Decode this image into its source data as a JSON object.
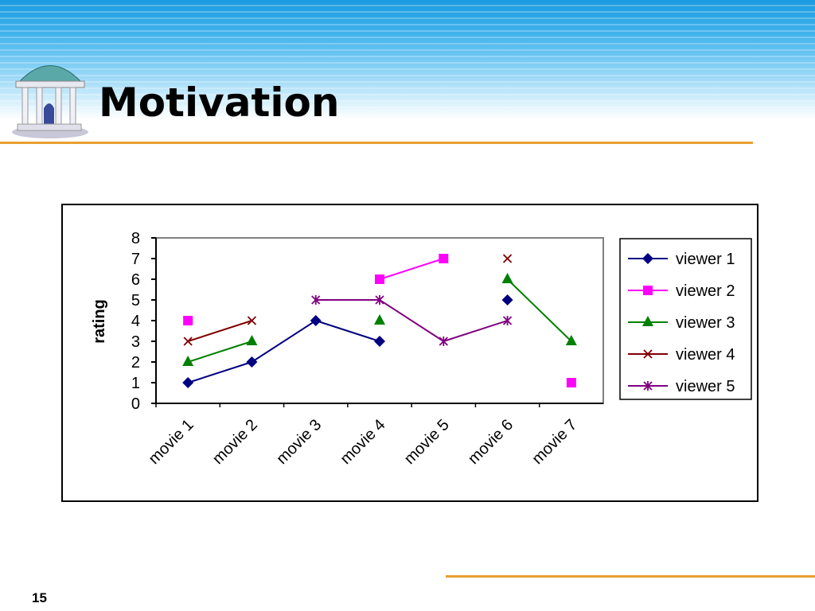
{
  "slide": {
    "title": "Motivation",
    "page_number": "15"
  },
  "colors": {
    "accent_rule": "#e8a030"
  },
  "chart_data": {
    "type": "line",
    "title": "",
    "xlabel": "",
    "ylabel": "rating",
    "ylim": [
      0,
      8
    ],
    "yticks": [
      "0",
      "1",
      "2",
      "3",
      "4",
      "5",
      "6",
      "7",
      "8"
    ],
    "categories": [
      "movie 1",
      "movie 2",
      "movie 3",
      "movie 4",
      "movie 5",
      "movie 6",
      "movie 7"
    ],
    "legend_position": "right",
    "series": [
      {
        "name": "viewer 1",
        "color": "#000080",
        "marker": "diamond",
        "values": [
          1,
          2,
          4,
          3,
          null,
          5,
          null
        ]
      },
      {
        "name": "viewer 2",
        "color": "#ff00ff",
        "marker": "square",
        "values": [
          4,
          null,
          null,
          6,
          7,
          null,
          1
        ]
      },
      {
        "name": "viewer 3",
        "color": "#008000",
        "marker": "triangle",
        "values": [
          2,
          3,
          null,
          4,
          null,
          6,
          3
        ]
      },
      {
        "name": "viewer 4",
        "color": "#800000",
        "marker": "x",
        "values": [
          3,
          4,
          null,
          null,
          null,
          7,
          null
        ]
      },
      {
        "name": "viewer 5",
        "color": "#800080",
        "marker": "star",
        "values": [
          null,
          null,
          5,
          5,
          3,
          4,
          null
        ]
      }
    ]
  }
}
